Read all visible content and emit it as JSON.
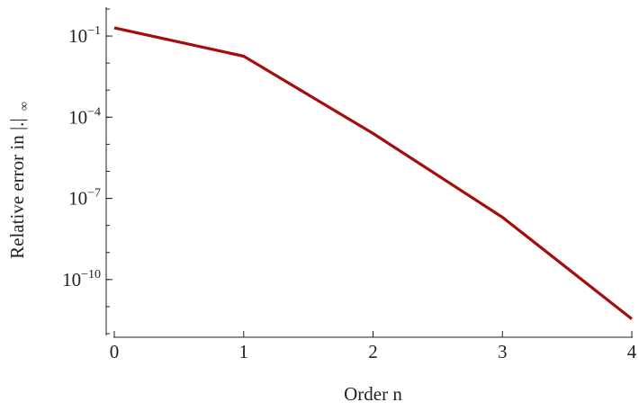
{
  "chart_data": {
    "type": "line",
    "title": "",
    "xlabel": "Order n",
    "ylabel": "Relative error in |.|",
    "ylabel_subscript": "∞",
    "x": [
      0,
      1,
      2,
      3,
      4
    ],
    "xticks": [
      "0",
      "1",
      "2",
      "3",
      "4"
    ],
    "xlim": [
      0,
      4
    ],
    "y_scale": "log",
    "ylim": [
      1e-12,
      1
    ],
    "yticks": [
      {
        "value": 0.1,
        "base": "10",
        "exp": "−1"
      },
      {
        "value": 0.0001,
        "base": "10",
        "exp": "−4"
      },
      {
        "value": 1e-07,
        "base": "10",
        "exp": "−7"
      },
      {
        "value": 1e-10,
        "base": "10",
        "exp": "−10"
      }
    ],
    "series": [
      {
        "color": "#a50d0d",
        "values": [
          0.2,
          0.018,
          2.5e-05,
          2e-08,
          3.5e-12
        ]
      }
    ],
    "grid": false,
    "legend": "none"
  }
}
